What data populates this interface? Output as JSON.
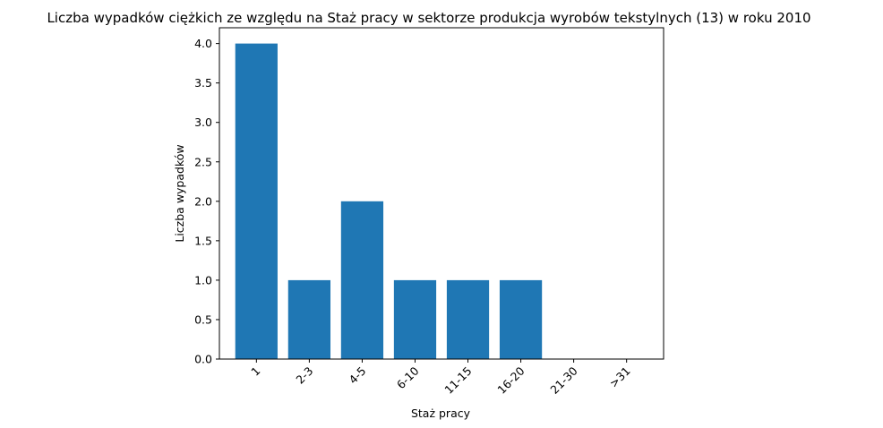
{
  "chart_data": {
    "type": "bar",
    "title": "Liczba wypadków ciężkich ze względu na Staż pracy w sektorze produkcja wyrobów tekstylnych  (13)   w roku 2010",
    "xlabel": "Staż pracy",
    "ylabel": "Liczba wypadków",
    "categories": [
      "1",
      "2-3",
      "4-5",
      "6-10",
      "11-15",
      "16-20",
      "21-30",
      ">31"
    ],
    "values": [
      4,
      1,
      2,
      1,
      1,
      1,
      0,
      0
    ],
    "ylim": [
      0,
      4.2
    ],
    "yticks": [
      "0.0",
      "0.5",
      "1.0",
      "1.5",
      "2.0",
      "2.5",
      "3.0",
      "3.5",
      "4.0"
    ],
    "bar_color": "#1f77b4",
    "grid": false,
    "xtick_rotation": 45
  }
}
